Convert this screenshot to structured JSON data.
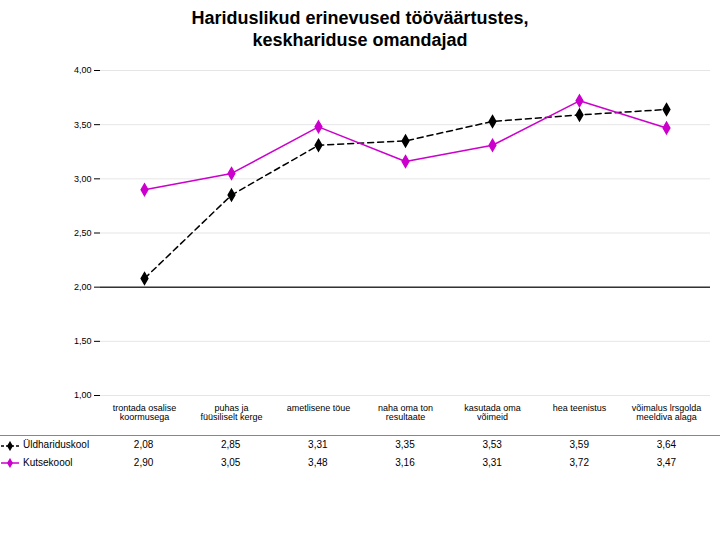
{
  "chart_data": {
    "type": "line",
    "title": "Hariduslikud erinevused tööväärtustes,\nkeskhariduse omandajad",
    "categories": [
      "trontada osalise\nkoormusega",
      "puhas ja\nfüüsiliselt kerge",
      "ametlisene töue",
      "naha oma ton\nresultaate",
      "kasutada oma\nvõimeid",
      "hea teenistus",
      "võimalus lrsgolda\nmeeldiva alaga"
    ],
    "series": [
      {
        "name": "Üldhariduskool",
        "color": "#000000",
        "marker": "diamond",
        "line_style": "dashed",
        "values": [
          2.08,
          2.85,
          3.31,
          3.35,
          3.53,
          3.59,
          3.64
        ],
        "value_labels": [
          "2,08",
          "2,85",
          "3,31",
          "3,35",
          "3,53",
          "3,59",
          "3,64"
        ]
      },
      {
        "name": "Kutsekoool",
        "color": "#CC00CC",
        "marker": "diamond",
        "line_style": "solid",
        "values": [
          2.9,
          3.05,
          3.48,
          3.16,
          3.31,
          3.72,
          3.47
        ],
        "value_labels": [
          "2,90",
          "3,05",
          "3,48",
          "3,16",
          "3,31",
          "3,72",
          "3,47"
        ]
      }
    ],
    "ylim": [
      1.0,
      4.0
    ],
    "yticks": [
      {
        "value": 1.0,
        "label": "1,00"
      },
      {
        "value": 1.5,
        "label": "1,50"
      },
      {
        "value": 2.0,
        "label": "2,00"
      },
      {
        "value": 2.5,
        "label": "2,50"
      },
      {
        "value": 3.0,
        "label": "3,00"
      },
      {
        "value": 3.5,
        "label": "3,50"
      },
      {
        "value": 4.0,
        "label": "4,00"
      }
    ],
    "grid": true,
    "legend": "bottom",
    "reference_line": 2.0
  }
}
